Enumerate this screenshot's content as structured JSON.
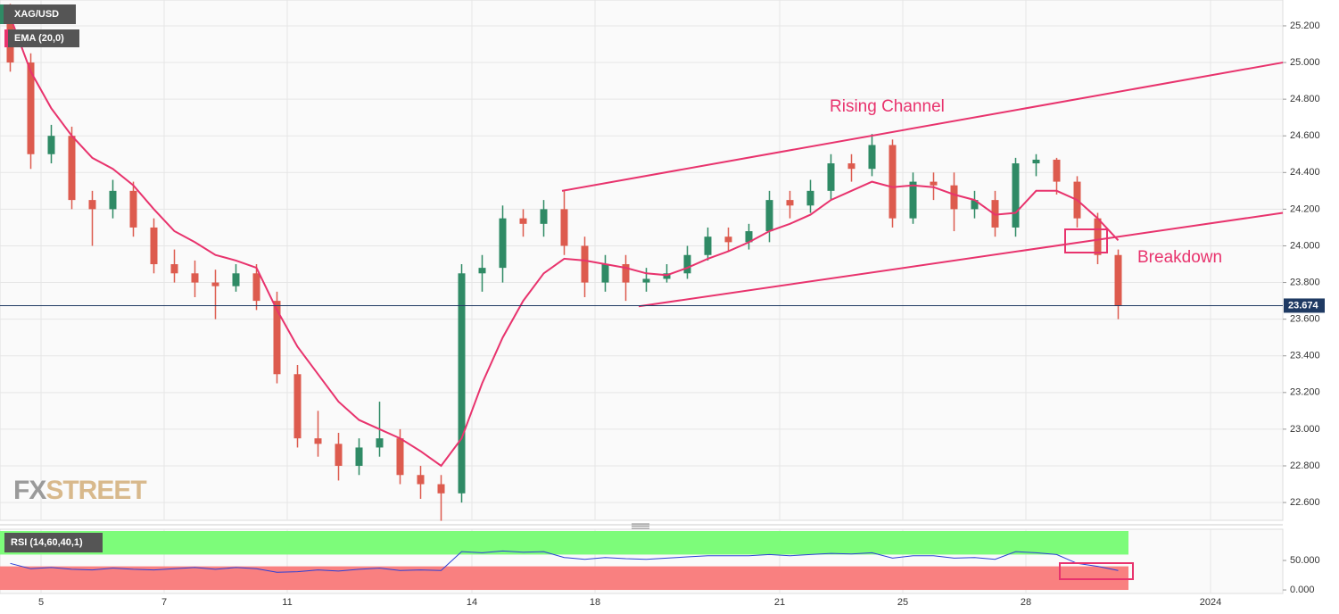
{
  "chart_data": [
    {
      "type": "candlestick",
      "title": "XAG/USD",
      "up_color": "#2f8a65",
      "down_color": "#dd5b4e",
      "open": [
        25.25,
        25.0,
        24.5,
        24.6,
        24.25,
        24.2,
        24.3,
        24.1,
        23.9,
        23.85,
        23.8,
        23.78,
        23.85,
        23.7,
        23.3,
        22.95,
        22.92,
        22.8,
        22.9,
        22.95,
        22.75,
        22.7,
        22.65,
        23.85,
        23.88,
        24.15,
        24.12,
        24.2,
        24.0,
        23.8,
        23.9,
        23.8,
        23.82,
        23.85,
        23.95,
        24.05,
        24.02,
        24.08,
        24.25,
        24.22,
        24.3,
        24.45,
        24.42,
        24.55,
        24.15,
        24.35,
        24.33,
        24.2,
        24.25,
        24.1,
        24.45,
        24.47,
        24.35,
        24.15,
        23.95,
        null,
        null,
        null,
        null,
        null,
        null,
        null
      ],
      "high": [
        25.32,
        25.05,
        24.66,
        24.65,
        24.3,
        24.36,
        24.35,
        24.15,
        23.98,
        23.92,
        23.87,
        23.9,
        23.9,
        23.75,
        23.35,
        23.1,
        22.98,
        22.95,
        23.15,
        23.0,
        22.8,
        22.75,
        23.9,
        23.95,
        24.22,
        24.2,
        24.25,
        24.3,
        24.05,
        23.95,
        23.95,
        23.88,
        23.9,
        24.0,
        24.1,
        24.1,
        24.12,
        24.3,
        24.3,
        24.36,
        24.5,
        24.5,
        24.61,
        24.58,
        24.4,
        24.4,
        24.4,
        24.3,
        24.3,
        24.48,
        24.5,
        24.48,
        24.38,
        24.18,
        23.98,
        null,
        null,
        null,
        null,
        null,
        null,
        null
      ],
      "low": [
        24.95,
        24.42,
        24.45,
        24.2,
        24.0,
        24.15,
        24.05,
        23.85,
        23.8,
        23.72,
        23.6,
        23.75,
        23.65,
        23.25,
        22.9,
        22.85,
        22.72,
        22.75,
        22.85,
        22.7,
        22.62,
        22.5,
        22.6,
        23.75,
        23.8,
        24.05,
        24.05,
        23.95,
        23.72,
        23.75,
        23.7,
        23.75,
        23.8,
        23.82,
        23.92,
        23.97,
        23.98,
        24.02,
        24.15,
        24.18,
        24.25,
        24.35,
        24.38,
        24.1,
        24.12,
        24.25,
        24.08,
        24.15,
        24.05,
        24.05,
        24.38,
        24.28,
        24.1,
        23.9,
        23.6,
        null,
        null,
        null,
        null,
        null,
        null,
        null
      ],
      "close": [
        25.0,
        24.5,
        24.6,
        24.25,
        24.2,
        24.3,
        24.1,
        23.9,
        23.85,
        23.8,
        23.78,
        23.85,
        23.7,
        23.3,
        22.95,
        22.92,
        22.8,
        22.9,
        22.95,
        22.75,
        22.7,
        22.65,
        23.85,
        23.88,
        24.15,
        24.12,
        24.2,
        24.0,
        23.8,
        23.9,
        23.8,
        23.82,
        23.85,
        23.95,
        24.05,
        24.02,
        24.08,
        24.25,
        24.22,
        24.3,
        24.45,
        24.42,
        24.55,
        24.15,
        24.35,
        24.33,
        24.2,
        24.25,
        24.1,
        24.45,
        24.47,
        24.35,
        24.15,
        23.95,
        23.674,
        null,
        null,
        null,
        null,
        null,
        null,
        null
      ],
      "series": [
        {
          "name": "EMA (20,0)",
          "color": "#e8336d",
          "values": [
            25.25,
            24.95,
            24.75,
            24.6,
            24.48,
            24.42,
            24.33,
            24.2,
            24.08,
            24.02,
            23.95,
            23.92,
            23.88,
            23.65,
            23.45,
            23.3,
            23.15,
            23.05,
            23.0,
            22.95,
            22.88,
            22.8,
            22.95,
            23.25,
            23.5,
            23.7,
            23.85,
            23.93,
            23.92,
            23.9,
            23.88,
            23.85,
            23.84,
            23.88,
            23.93,
            23.97,
            24.02,
            24.08,
            24.12,
            24.17,
            24.25,
            24.3,
            24.35,
            24.32,
            24.33,
            24.32,
            24.28,
            24.25,
            24.17,
            24.18,
            24.3,
            24.3,
            24.25,
            24.15,
            24.03,
            null,
            null,
            null,
            null,
            null,
            null,
            null
          ]
        }
      ],
      "ylim": [
        22.503,
        25.341
      ],
      "yticks": [
        {
          "value": 22.6,
          "label": "22.600"
        },
        {
          "value": 22.8,
          "label": "22.800"
        },
        {
          "value": 23.0,
          "label": "23.000"
        },
        {
          "value": 23.2,
          "label": "23.200"
        },
        {
          "value": 23.4,
          "label": "23.400"
        },
        {
          "value": 23.6,
          "label": "23.600"
        },
        {
          "value": 23.8,
          "label": "23.800"
        },
        {
          "value": 24.0,
          "label": "24.000"
        },
        {
          "value": 24.2,
          "label": "24.200"
        },
        {
          "value": 24.4,
          "label": "24.400"
        },
        {
          "value": 24.6,
          "label": "24.600"
        },
        {
          "value": 24.8,
          "label": "24.800"
        },
        {
          "value": 25.0,
          "label": "25.000"
        },
        {
          "value": 25.2,
          "label": "25.200"
        }
      ],
      "last_price": 23.674,
      "channel": {
        "color": "#e8336d",
        "upper": [
          24.3,
          25.0
        ],
        "lower": [
          23.67,
          24.18
        ]
      },
      "annotations": [
        "Rising Channel",
        "Breakdown"
      ],
      "watermark": [
        "FX",
        "STREET"
      ],
      "grid": true
    },
    {
      "type": "line",
      "title": "RSI (14,60,40,1)",
      "categories": [
        null,
        null,
        "5",
        null,
        null,
        null,
        null,
        null,
        "7",
        null,
        null,
        null,
        null,
        null,
        "11",
        null,
        null,
        null,
        null,
        null,
        null,
        null,
        null,
        "14",
        null,
        null,
        null,
        null,
        null,
        "18",
        null,
        null,
        null,
        null,
        null,
        null,
        null,
        null,
        "21",
        null,
        null,
        null,
        null,
        null,
        "25",
        null,
        null,
        null,
        null,
        null,
        "28",
        null,
        null,
        null,
        null,
        null,
        null,
        null,
        null,
        "2024",
        null,
        null
      ],
      "series": [
        {
          "name": "RSI",
          "color": "#2b3fd6",
          "values": [
            45,
            36,
            38,
            35,
            34,
            37,
            35,
            34,
            36,
            38,
            35,
            38,
            36,
            30,
            31,
            34,
            32,
            35,
            37,
            33,
            34,
            33,
            65,
            63,
            66,
            64,
            65,
            55,
            52,
            55,
            53,
            52,
            54,
            56,
            58,
            58,
            58,
            60,
            58,
            60,
            62,
            61,
            63,
            54,
            58,
            58,
            54,
            55,
            52,
            65,
            63,
            60,
            45,
            40,
            33,
            null,
            null,
            null,
            null,
            null,
            null,
            null
          ]
        }
      ],
      "bands": {
        "upper": [
          60,
          100
        ],
        "lower": [
          0,
          40
        ],
        "upper_color": "#7dfc7a",
        "lower_color": "#f98080"
      },
      "ylim": [
        -6,
        103
      ],
      "yticks": [
        {
          "value": 0,
          "label": "0.000"
        },
        {
          "value": 50,
          "label": "50.000"
        }
      ],
      "grid": true
    }
  ]
}
